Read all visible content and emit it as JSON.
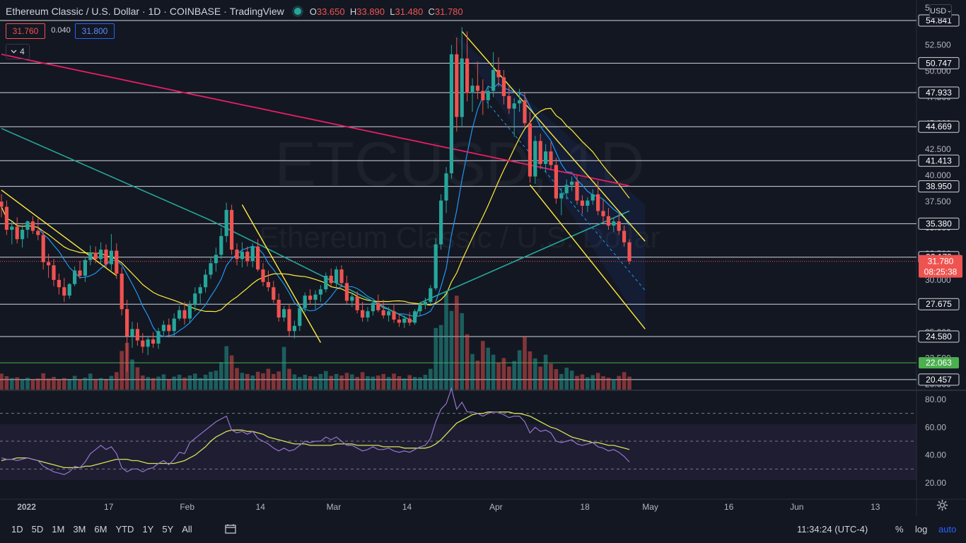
{
  "header": {
    "symbol": "Ethereum Classic / U.S. Dollar",
    "interval": "1D",
    "exchange": "COINBASE",
    "source": "TradingView",
    "ohlc": {
      "o": "33.650",
      "h": "33.890",
      "l": "31.480",
      "c": "31.780"
    }
  },
  "quote": {
    "bid": "31.760",
    "spread": "0.040",
    "ask": "31.800"
  },
  "indicators_count": "4",
  "currency": "USD",
  "watermark": {
    "ticker": "ETCUSD, 1D",
    "name": "Ethereum Classic / U.S. Dollar"
  },
  "timeframes": [
    "1D",
    "5D",
    "1M",
    "3M",
    "6M",
    "YTD",
    "1Y",
    "5Y",
    "All"
  ],
  "footer": {
    "clock": "11:34:24 (UTC-4)",
    "percent": "%",
    "log": "log",
    "auto": "auto"
  },
  "colors": {
    "up": "#26a69a",
    "down": "#ef5350",
    "ma_fast": "#2196f3",
    "ma_mid": "#ffeb3b",
    "ma_100": "#26a69a",
    "ma_200": "#e91e63",
    "trend": "#ffeb3b",
    "rsi": "#9575cd",
    "rsi_ma": "#d4e157",
    "accent": "#2962ff"
  },
  "chart_data": {
    "type": "candlestick",
    "x_ticks": [
      "2022",
      "17",
      "Feb",
      "14",
      "Mar",
      "14",
      "Apr",
      "18",
      "May",
      "16",
      "Jun",
      "13"
    ],
    "price_ticks": [
      "52.500",
      "50.000",
      "47.500",
      "45.000",
      "42.500",
      "40.000",
      "37.500",
      "35.000",
      "32.500",
      "30.000",
      "27.500",
      "25.000",
      "22.500",
      "20.000"
    ],
    "price_top_label": "5",
    "price_range": [
      19.5,
      56.8
    ],
    "horizontal_levels": [
      "54.841",
      "50.747",
      "47.933",
      "44.669",
      "41.413",
      "38.950",
      "35.380",
      "32.179",
      "27.675",
      "24.580",
      "20.457"
    ],
    "support_level": "22.063",
    "last_price": "31.780",
    "countdown": "08:25:38",
    "candles": [
      [
        37.5,
        38.2,
        36.0,
        37.0
      ],
      [
        37.0,
        37.6,
        34.3,
        34.8
      ],
      [
        34.8,
        35.6,
        33.4,
        35.1
      ],
      [
        35.1,
        36.0,
        33.5,
        33.9
      ],
      [
        33.9,
        35.3,
        33.1,
        34.8
      ],
      [
        34.8,
        35.7,
        34.0,
        35.6
      ],
      [
        35.6,
        36.1,
        34.4,
        34.7
      ],
      [
        34.7,
        35.9,
        33.8,
        34.3
      ],
      [
        34.3,
        34.7,
        31.0,
        31.7
      ],
      [
        31.7,
        32.5,
        30.2,
        31.4
      ],
      [
        31.4,
        32.0,
        29.4,
        30.0
      ],
      [
        30.0,
        30.6,
        28.6,
        29.3
      ],
      [
        29.3,
        30.2,
        27.9,
        28.5
      ],
      [
        28.5,
        29.7,
        28.2,
        29.6
      ],
      [
        29.6,
        31.3,
        29.4,
        30.9
      ],
      [
        30.9,
        31.8,
        30.1,
        30.4
      ],
      [
        30.4,
        32.1,
        29.8,
        31.9
      ],
      [
        31.9,
        33.3,
        31.4,
        32.6
      ],
      [
        32.6,
        33.2,
        31.6,
        32.0
      ],
      [
        32.0,
        33.6,
        31.5,
        32.9
      ],
      [
        32.9,
        33.4,
        31.2,
        31.5
      ],
      [
        31.5,
        34.4,
        30.9,
        32.8
      ],
      [
        32.8,
        33.5,
        30.1,
        30.6
      ],
      [
        30.6,
        31.2,
        26.6,
        27.2
      ],
      [
        27.2,
        28.1,
        21.2,
        24.6
      ],
      [
        24.6,
        26.0,
        23.5,
        25.3
      ],
      [
        25.3,
        25.9,
        23.7,
        24.2
      ],
      [
        24.2,
        24.9,
        23.0,
        23.6
      ],
      [
        23.6,
        24.5,
        22.8,
        24.3
      ],
      [
        24.3,
        25.0,
        23.5,
        23.9
      ],
      [
        23.9,
        25.4,
        23.4,
        25.1
      ],
      [
        25.1,
        26.1,
        24.6,
        25.7
      ],
      [
        25.7,
        26.3,
        24.5,
        25.1
      ],
      [
        25.1,
        26.8,
        24.6,
        26.3
      ],
      [
        26.3,
        27.5,
        26.1,
        27.1
      ],
      [
        27.1,
        27.9,
        25.7,
        26.3
      ],
      [
        26.3,
        28.0,
        25.9,
        27.6
      ],
      [
        27.6,
        29.3,
        27.0,
        28.7
      ],
      [
        28.7,
        29.6,
        27.6,
        29.3
      ],
      [
        29.3,
        31.0,
        28.8,
        30.5
      ],
      [
        30.5,
        32.1,
        30.1,
        31.6
      ],
      [
        31.6,
        33.1,
        30.8,
        32.4
      ],
      [
        32.4,
        35.0,
        32.0,
        34.2
      ],
      [
        34.2,
        37.4,
        33.6,
        36.7
      ],
      [
        36.7,
        37.2,
        32.4,
        32.9
      ],
      [
        32.9,
        33.5,
        31.4,
        32.0
      ],
      [
        32.0,
        33.6,
        31.2,
        32.7
      ],
      [
        32.7,
        33.2,
        31.3,
        31.8
      ],
      [
        31.8,
        33.5,
        31.2,
        33.2
      ],
      [
        33.2,
        33.9,
        30.8,
        31.0
      ],
      [
        31.0,
        31.6,
        29.4,
        29.8
      ],
      [
        29.8,
        30.9,
        28.9,
        29.3
      ],
      [
        29.3,
        29.9,
        27.8,
        28.1
      ],
      [
        28.1,
        28.7,
        26.0,
        26.4
      ],
      [
        26.4,
        27.5,
        26.0,
        27.2
      ],
      [
        27.2,
        27.7,
        24.6,
        25.1
      ],
      [
        25.1,
        26.1,
        24.4,
        25.6
      ],
      [
        25.6,
        27.7,
        25.1,
        27.3
      ],
      [
        27.3,
        28.8,
        26.9,
        28.5
      ],
      [
        28.5,
        29.1,
        27.6,
        28.1
      ],
      [
        28.1,
        29.0,
        27.2,
        28.6
      ],
      [
        28.6,
        29.5,
        27.9,
        29.1
      ],
      [
        29.1,
        30.7,
        28.8,
        30.4
      ],
      [
        30.4,
        31.1,
        29.4,
        29.7
      ],
      [
        29.7,
        31.3,
        29.3,
        31.0
      ],
      [
        31.0,
        31.4,
        29.3,
        29.7
      ],
      [
        29.7,
        30.4,
        27.7,
        28.0
      ],
      [
        28.0,
        28.8,
        27.4,
        28.4
      ],
      [
        28.4,
        28.9,
        26.8,
        27.1
      ],
      [
        27.1,
        27.9,
        26.0,
        26.4
      ],
      [
        26.4,
        27.4,
        26.0,
        27.0
      ],
      [
        27.0,
        28.0,
        26.6,
        27.8
      ],
      [
        27.8,
        28.6,
        26.9,
        27.1
      ],
      [
        27.1,
        28.1,
        26.3,
        26.6
      ],
      [
        26.6,
        27.4,
        26.0,
        27.0
      ],
      [
        27.0,
        27.7,
        25.9,
        26.2
      ],
      [
        26.2,
        26.7,
        25.5,
        25.9
      ],
      [
        25.9,
        26.6,
        25.4,
        26.3
      ],
      [
        26.3,
        26.9,
        25.6,
        25.9
      ],
      [
        25.9,
        27.2,
        25.7,
        27.0
      ],
      [
        27.0,
        27.9,
        26.5,
        27.6
      ],
      [
        27.6,
        28.3,
        27.2,
        27.9
      ],
      [
        27.9,
        29.5,
        27.6,
        29.2
      ],
      [
        29.2,
        34.0,
        29.0,
        33.4
      ],
      [
        33.4,
        38.2,
        32.9,
        37.6
      ],
      [
        37.6,
        40.8,
        36.4,
        40.2
      ],
      [
        40.2,
        52.5,
        39.7,
        51.6
      ],
      [
        51.6,
        53.2,
        44.2,
        45.6
      ],
      [
        45.6,
        54.2,
        44.6,
        51.2
      ],
      [
        51.2,
        53.8,
        47.1,
        47.9
      ],
      [
        47.9,
        49.3,
        46.1,
        48.6
      ],
      [
        48.6,
        50.9,
        47.3,
        48.1
      ],
      [
        48.1,
        49.2,
        45.8,
        47.2
      ],
      [
        47.2,
        48.6,
        46.4,
        48.1
      ],
      [
        48.1,
        51.8,
        47.5,
        50.1
      ],
      [
        50.1,
        51.3,
        48.5,
        49.4
      ],
      [
        49.4,
        50.1,
        46.8,
        47.6
      ],
      [
        47.6,
        48.5,
        45.9,
        46.4
      ],
      [
        46.4,
        47.4,
        43.7,
        46.9
      ],
      [
        46.9,
        48.3,
        46.1,
        47.2
      ],
      [
        47.2,
        47.9,
        44.6,
        45.0
      ],
      [
        45.0,
        46.1,
        39.3,
        39.9
      ],
      [
        39.9,
        43.8,
        39.2,
        43.3
      ],
      [
        43.3,
        44.0,
        40.6,
        41.1
      ],
      [
        41.1,
        43.0,
        40.3,
        42.3
      ],
      [
        42.3,
        43.2,
        40.5,
        41.0
      ],
      [
        41.0,
        41.7,
        37.3,
        37.8
      ],
      [
        37.8,
        38.8,
        36.2,
        38.3
      ],
      [
        38.3,
        39.6,
        37.7,
        39.1
      ],
      [
        39.1,
        39.9,
        38.5,
        39.4
      ],
      [
        39.4,
        40.0,
        37.2,
        37.6
      ],
      [
        37.6,
        38.1,
        36.3,
        37.1
      ],
      [
        37.1,
        37.9,
        36.5,
        37.6
      ],
      [
        37.6,
        38.7,
        37.2,
        38.2
      ],
      [
        38.2,
        39.5,
        36.2,
        36.6
      ],
      [
        36.6,
        37.7,
        35.4,
        36.1
      ],
      [
        36.1,
        36.9,
        34.8,
        35.2
      ],
      [
        35.2,
        35.9,
        34.6,
        35.6
      ],
      [
        35.6,
        36.3,
        34.3,
        34.7
      ],
      [
        34.7,
        35.2,
        33.2,
        33.6
      ],
      [
        33.6,
        33.9,
        31.5,
        31.8
      ]
    ],
    "volume": [
      4.3,
      3.6,
      3.1,
      3.3,
      2.7,
      3.2,
      2.8,
      3.0,
      4.4,
      3.0,
      3.4,
      2.7,
      3.1,
      2.6,
      3.7,
      2.8,
      3.2,
      4.3,
      2.9,
      3.1,
      2.6,
      3.7,
      4.7,
      10.4,
      12.6,
      8.1,
      6.0,
      3.8,
      3.4,
      3.1,
      3.5,
      4.1,
      2.8,
      3.5,
      4.0,
      3.2,
      3.8,
      4.3,
      3.1,
      4.0,
      4.8,
      5.1,
      7.4,
      11.7,
      9.2,
      5.8,
      4.5,
      4.2,
      3.8,
      4.8,
      4.4,
      5.6,
      4.2,
      4.9,
      11.5,
      5.6,
      4.1,
      3.4,
      4.0,
      3.6,
      3.5,
      4.2,
      5.0,
      3.7,
      4.2,
      3.8,
      4.5,
      4.1,
      3.4,
      4.7,
      3.6,
      3.5,
      3.8,
      4.2,
      3.4,
      4.3,
      3.6,
      3.0,
      3.9,
      3.4,
      3.3,
      4.0,
      5.6,
      16.6,
      17.4,
      26.3,
      21.2,
      25.3,
      20.6,
      14.9,
      9.6,
      7.8,
      13.1,
      11.3,
      9.4,
      7.3,
      8.5,
      6.2,
      7.7,
      10.6,
      14.3,
      10.3,
      8.4,
      6.2,
      9.4,
      7.0,
      5.5,
      4.2,
      5.9,
      5.1,
      3.7,
      4.1,
      3.3,
      3.9,
      4.5,
      3.6,
      3.2,
      2.8,
      3.7,
      4.7,
      3.5
    ],
    "rsi_ticks": [
      "80.00",
      "60.00",
      "40.00",
      "20.00"
    ],
    "rsi_bands": [
      70,
      50,
      30
    ],
    "rsi": [
      38,
      37,
      37,
      36,
      37,
      38,
      37,
      36,
      32,
      30,
      28,
      27,
      26,
      28,
      32,
      31,
      35,
      41,
      44,
      47,
      44,
      46,
      41,
      31,
      28,
      30,
      30,
      28,
      30,
      31,
      34,
      36,
      33,
      37,
      42,
      41,
      49,
      52,
      55,
      58,
      61,
      64,
      66,
      68,
      58,
      56,
      57,
      55,
      57,
      52,
      50,
      48,
      45,
      43,
      45,
      43,
      44,
      47,
      50,
      49,
      50,
      50,
      53,
      51,
      53,
      50,
      47,
      47,
      45,
      43,
      44,
      46,
      44,
      44,
      45,
      43,
      42,
      43,
      42,
      44,
      46,
      47,
      52,
      64,
      73,
      77,
      88,
      73,
      78,
      71,
      71,
      70,
      68,
      70,
      71,
      71,
      69,
      67,
      68,
      68,
      64,
      56,
      60,
      57,
      58,
      56,
      50,
      49,
      50,
      51,
      48,
      47,
      48,
      49,
      46,
      45,
      43,
      44,
      42,
      39,
      35
    ],
    "rsi_ma": [
      36,
      37,
      37,
      38,
      38,
      38,
      37,
      36,
      35,
      34,
      33,
      32,
      31,
      31,
      31,
      31,
      32,
      32,
      33,
      34,
      35,
      36,
      37,
      37,
      37,
      36,
      36,
      35,
      34,
      34,
      34,
      34,
      34,
      34,
      35,
      36,
      38,
      40,
      43,
      46,
      50,
      53,
      55,
      57,
      58,
      58,
      58,
      57,
      57,
      56,
      55,
      53,
      52,
      51,
      50,
      49,
      48,
      48,
      48,
      47,
      47,
      47,
      47,
      47,
      48,
      48,
      48,
      48,
      47,
      47,
      47,
      47,
      47,
      46,
      46,
      46,
      46,
      45,
      45,
      45,
      45,
      45,
      46,
      48,
      51,
      55,
      59,
      63,
      65,
      67,
      69,
      70,
      70,
      71,
      71,
      71,
      71,
      71,
      70,
      70,
      69,
      68,
      66,
      64,
      62,
      60,
      59,
      57,
      55,
      53,
      52,
      51,
      50,
      49,
      49,
      48,
      47,
      47,
      46,
      45,
      44
    ]
  }
}
